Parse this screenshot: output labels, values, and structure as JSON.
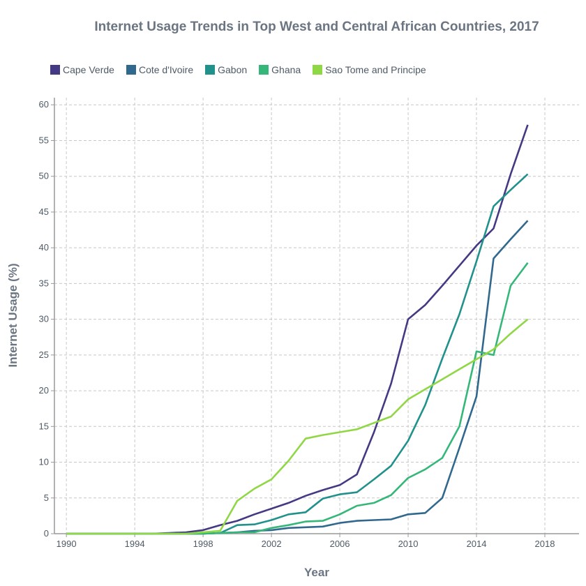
{
  "chart_data": {
    "type": "line",
    "title": "Internet Usage Trends in Top West and Central African Countries, 2017",
    "xlabel": "Year",
    "ylabel": "Internet Usage (%)",
    "xlim": [
      1989.3,
      2020
    ],
    "ylim": [
      0,
      61
    ],
    "x_ticks": [
      1990,
      1994,
      1998,
      2002,
      2006,
      2010,
      2014,
      2018
    ],
    "y_ticks": [
      0,
      5,
      10,
      15,
      20,
      25,
      30,
      35,
      40,
      45,
      50,
      55,
      60
    ],
    "grid": true,
    "legend_position": "top-left",
    "x": [
      1990,
      1991,
      1992,
      1993,
      1994,
      1995,
      1996,
      1997,
      1998,
      1999,
      2000,
      2001,
      2002,
      2003,
      2004,
      2005,
      2006,
      2007,
      2008,
      2009,
      2010,
      2011,
      2012,
      2013,
      2014,
      2015,
      2016,
      2017
    ],
    "series": [
      {
        "name": "Cape Verde",
        "color": "#443983",
        "values": [
          0,
          0,
          0,
          0,
          0,
          0,
          0.1,
          0.2,
          0.5,
          1.2,
          1.8,
          2.7,
          3.5,
          4.3,
          5.3,
          6.1,
          6.8,
          8.3,
          14.2,
          21.0,
          30.0,
          32.0,
          34.7,
          37.5,
          40.3,
          42.7,
          50.3,
          57.2
        ]
      },
      {
        "name": "Cote d'Ivoire",
        "color": "#31688e",
        "values": [
          0,
          0,
          0,
          0,
          0,
          0,
          0,
          0,
          0,
          0.1,
          0.2,
          0.4,
          0.5,
          0.8,
          0.9,
          1.0,
          1.5,
          1.8,
          1.9,
          2.0,
          2.7,
          2.9,
          5.0,
          12.0,
          19.2,
          38.5,
          41.2,
          43.8
        ]
      },
      {
        "name": "Gabon",
        "color": "#21918c",
        "values": [
          0,
          0,
          0,
          0,
          0,
          0,
          0,
          0,
          0,
          0.1,
          1.2,
          1.3,
          1.9,
          2.7,
          3.0,
          4.9,
          5.5,
          5.8,
          7.6,
          9.5,
          13.0,
          18.0,
          24.5,
          30.7,
          38.1,
          45.8,
          48.1,
          50.3
        ]
      },
      {
        "name": "Ghana",
        "color": "#35b779",
        "values": [
          0,
          0,
          0,
          0,
          0,
          0,
          0,
          0,
          0,
          0.1,
          0.2,
          0.2,
          0.8,
          1.2,
          1.7,
          1.8,
          2.7,
          3.9,
          4.3,
          5.4,
          7.8,
          9.0,
          10.6,
          15.0,
          25.5,
          25.0,
          34.7,
          37.9
        ]
      },
      {
        "name": "Sao Tome and Principe",
        "color": "#8fd744",
        "values": [
          0,
          0,
          0,
          0,
          0,
          0,
          0,
          0,
          0.2,
          0.4,
          4.6,
          6.3,
          7.6,
          10.2,
          13.3,
          13.8,
          14.2,
          14.6,
          15.5,
          16.4,
          18.8,
          20.2,
          21.6,
          23.0,
          24.4,
          25.8,
          28.0,
          30.0
        ]
      }
    ]
  }
}
